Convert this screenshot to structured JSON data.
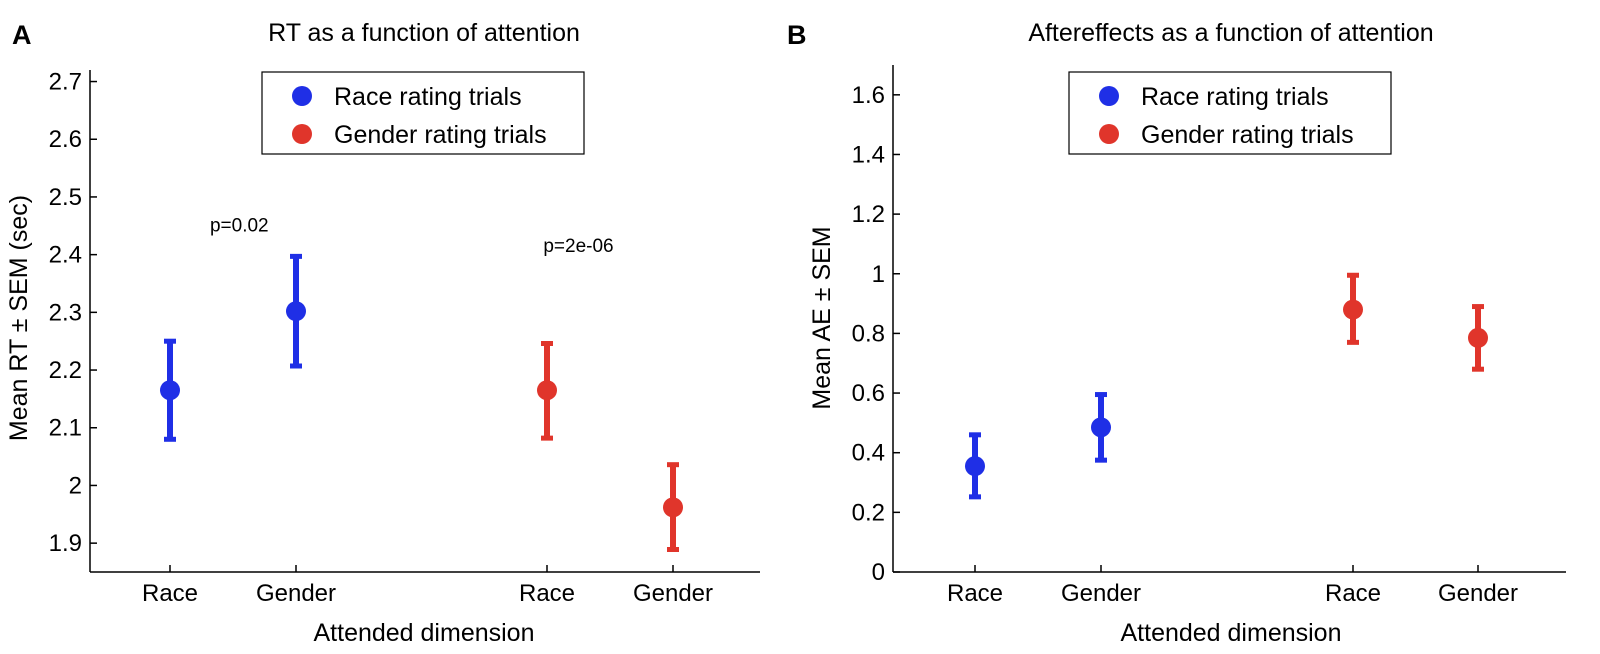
{
  "chart_data": [
    {
      "panel_label": "A",
      "type": "scatter",
      "title": "RT as a function of attention",
      "xlabel": "Attended dimension",
      "ylabel": "Mean RT ± SEM (sec)",
      "ylim": [
        1.85,
        2.72
      ],
      "yticks": [
        "1.9",
        "2",
        "2.1",
        "2.2",
        "2.3",
        "2.4",
        "2.5",
        "2.6",
        "2.7"
      ],
      "ytick_values": [
        1.9,
        2.0,
        2.1,
        2.2,
        2.3,
        2.4,
        2.5,
        2.6,
        2.7
      ],
      "categories": [
        "Race",
        "Gender",
        "Race",
        "Gender"
      ],
      "series": [
        {
          "name": "Race rating trials",
          "color": "#1f2fe6",
          "points": [
            {
              "category_index": 0,
              "mean": 2.165,
              "lower": 2.08,
              "upper": 2.25
            },
            {
              "category_index": 1,
              "mean": 2.302,
              "lower": 2.207,
              "upper": 2.397
            }
          ]
        },
        {
          "name": "Gender rating trials",
          "color": "#e0352b",
          "points": [
            {
              "category_index": 2,
              "mean": 2.165,
              "lower": 2.082,
              "upper": 2.246
            },
            {
              "category_index": 3,
              "mean": 1.962,
              "lower": 1.889,
              "upper": 2.036
            }
          ]
        }
      ],
      "annotations": [
        {
          "text": "p=0.02",
          "x_index": 0.55,
          "y": 2.44
        },
        {
          "text": "p=2e-06",
          "x_index": 2.25,
          "y": 2.405
        }
      ],
      "legend_position": "top-center"
    },
    {
      "panel_label": "B",
      "type": "scatter",
      "title": "Aftereffects as a function of attention",
      "xlabel": "Attended dimension",
      "ylabel": "Mean AE ± SEM",
      "ylim": [
        0,
        1.7
      ],
      "yticks": [
        "0",
        "0.2",
        "0.4",
        "0.6",
        "0.8",
        "1",
        "1.2",
        "1.4",
        "1.6"
      ],
      "ytick_values": [
        0,
        0.2,
        0.4,
        0.6,
        0.8,
        1.0,
        1.2,
        1.4,
        1.6
      ],
      "categories": [
        "Race",
        "Gender",
        "Race",
        "Gender"
      ],
      "series": [
        {
          "name": "Race rating trials",
          "color": "#1f2fe6",
          "points": [
            {
              "category_index": 0,
              "mean": 0.355,
              "lower": 0.252,
              "upper": 0.46
            },
            {
              "category_index": 1,
              "mean": 0.485,
              "lower": 0.375,
              "upper": 0.595
            }
          ]
        },
        {
          "name": "Gender rating trials",
          "color": "#e0352b",
          "points": [
            {
              "category_index": 2,
              "mean": 0.88,
              "lower": 0.77,
              "upper": 0.995
            },
            {
              "category_index": 3,
              "mean": 0.785,
              "lower": 0.68,
              "upper": 0.89
            }
          ]
        }
      ],
      "annotations": [],
      "legend_position": "top-center"
    }
  ]
}
